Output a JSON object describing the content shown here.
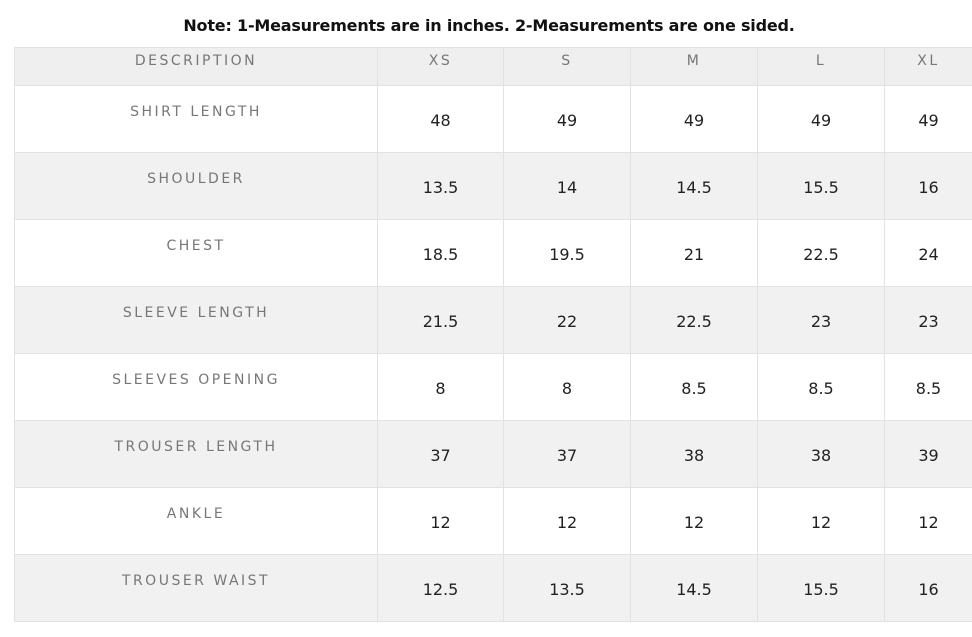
{
  "note": "Note: 1-Measurements are in inches. 2-Measurements are one sided.",
  "table": {
    "header": [
      "DESCRIPTION",
      "XS",
      "S",
      "M",
      "L",
      "XL"
    ],
    "rows": [
      [
        "SHIRT LENGTH",
        "48",
        "49",
        "49",
        "49",
        "49"
      ],
      [
        "SHOULDER",
        "13.5",
        "14",
        "14.5",
        "15.5",
        "16"
      ],
      [
        "CHEST",
        "18.5",
        "19.5",
        "21",
        "22.5",
        "24"
      ],
      [
        "SLEEVE LENGTH",
        "21.5",
        "22",
        "22.5",
        "23",
        "23"
      ],
      [
        "SLEEVES OPENING",
        "8",
        "8",
        "8.5",
        "8.5",
        "8.5"
      ],
      [
        "TROUSER LENGTH",
        "37",
        "37",
        "38",
        "38",
        "39"
      ],
      [
        "ANKLE",
        "12",
        "12",
        "12",
        "12",
        "12"
      ],
      [
        "TROUSER WAIST",
        "12.5",
        "13.5",
        "14.5",
        "15.5",
        "16"
      ]
    ]
  }
}
